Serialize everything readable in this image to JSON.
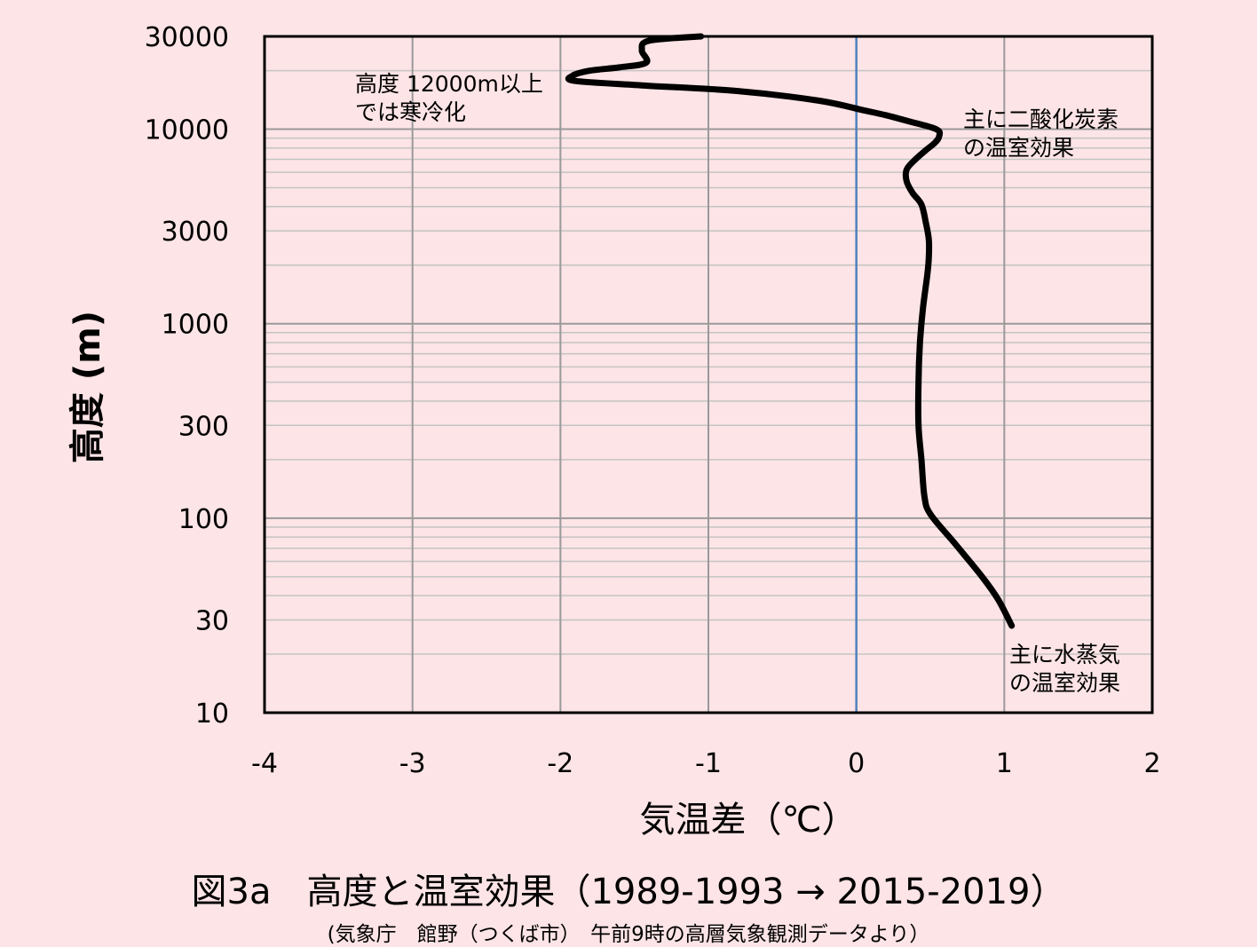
{
  "figure": {
    "title": "図3a　高度と温室効果（1989-1993 → 2015-2019）",
    "source": "(気象庁　館野（つくば市）　午前9時の高層気象観測データより）"
  },
  "chart_data": {
    "type": "line",
    "xlabel": "気温差（℃）",
    "ylabel": "高度 (m)",
    "xlim": [
      -4,
      2
    ],
    "ylim": [
      10,
      30000
    ],
    "yscale": "log",
    "grid": true,
    "xticks": [
      "-4",
      "-3",
      "-2",
      "-1",
      "0",
      "1",
      "2"
    ],
    "yticks": [
      {
        "value": 30000,
        "label": "30000"
      },
      {
        "value": 10000,
        "label": "10000"
      },
      {
        "value": 3000,
        "label": "3000"
      },
      {
        "value": 1000,
        "label": "1000"
      },
      {
        "value": 300,
        "label": "300"
      },
      {
        "value": 100,
        "label": "100"
      },
      {
        "value": 30,
        "label": "30"
      },
      {
        "value": 10,
        "label": "10"
      }
    ],
    "zero_line_color": "#4f81bd",
    "line_color": "#000000",
    "series": [
      {
        "x": [
          1.05,
          0.96,
          0.85,
          0.66,
          0.5,
          0.46,
          0.44,
          0.42,
          0.42,
          0.43,
          0.45,
          0.48,
          0.49,
          0.49,
          0.47,
          0.44,
          0.38,
          0.34,
          0.34,
          0.4,
          0.47,
          0.53,
          0.56,
          0.54,
          0.35,
          0.2,
          0.05,
          -0.25,
          -0.8,
          -1.45,
          -1.9,
          -1.92,
          -1.8,
          -1.6,
          -1.42,
          -1.45,
          -1.4,
          -1.05
        ],
        "y": [
          28,
          38,
          50,
          75,
          105,
          130,
          200,
          300,
          500,
          800,
          1200,
          1800,
          2200,
          2700,
          3300,
          4100,
          4700,
          5400,
          6200,
          7000,
          7800,
          8500,
          9200,
          10000,
          11000,
          11800,
          12500,
          14000,
          15700,
          16800,
          17700,
          18800,
          20000,
          20800,
          22000,
          25500,
          28500,
          30000
        ]
      }
    ],
    "annotations": [
      {
        "lines": [
          "高度 12000m以上",
          "では寒冷化"
        ]
      },
      {
        "lines": [
          "主に二酸化炭素",
          "の温室効果"
        ]
      },
      {
        "lines": [
          "主に水蒸気",
          "の温室効果"
        ]
      }
    ]
  }
}
